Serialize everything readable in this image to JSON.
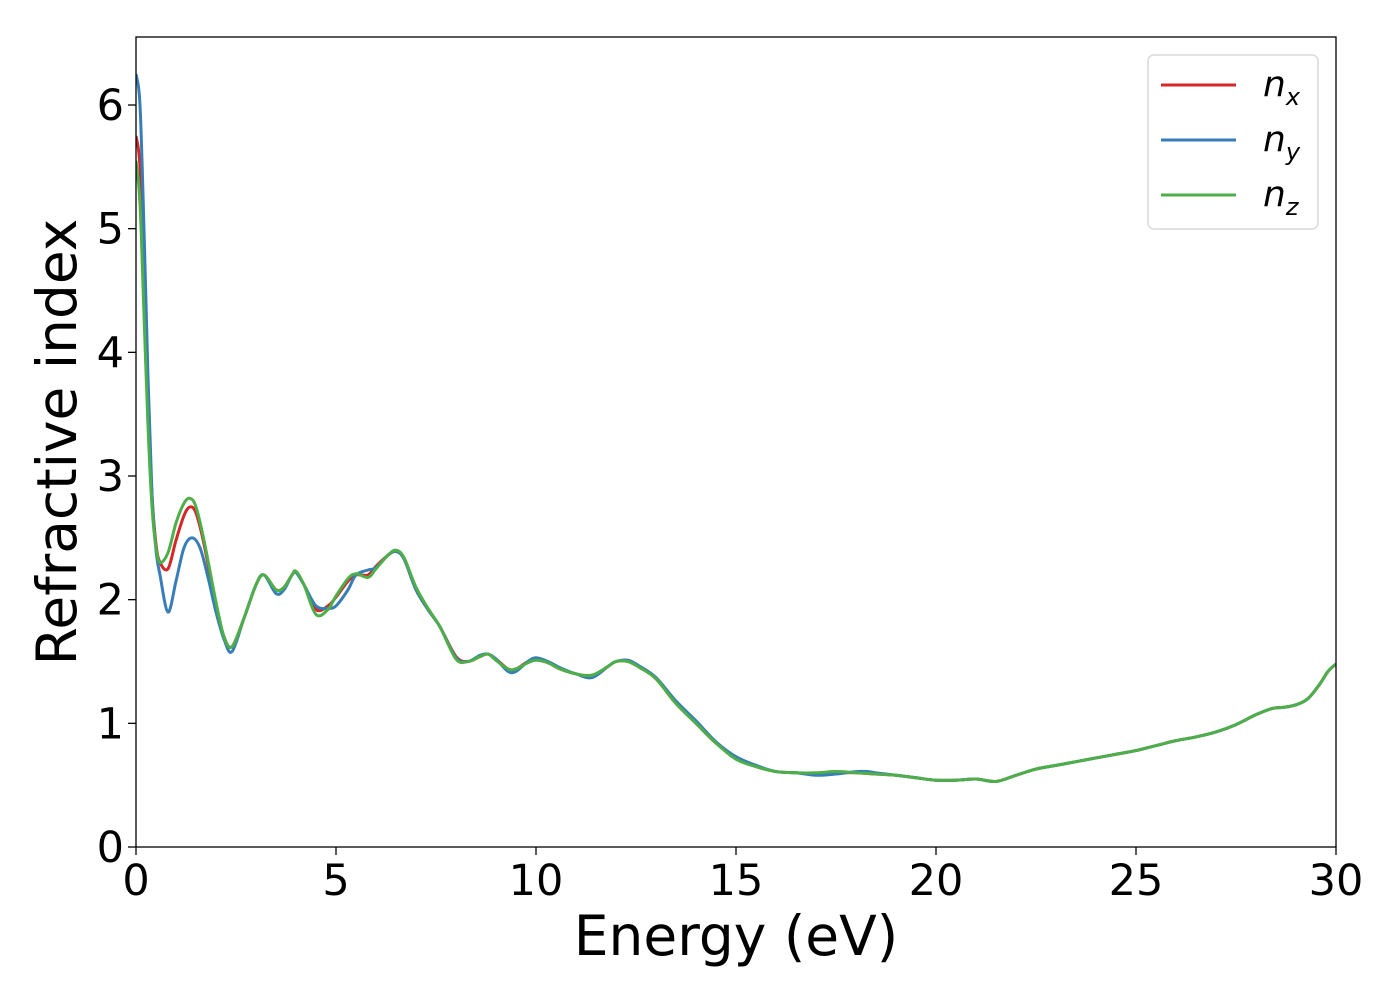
{
  "chart_data": {
    "type": "line",
    "xlabel": "Energy (eV)",
    "ylabel": "Refractive index",
    "xlim": [
      0,
      30
    ],
    "ylim": [
      0,
      6.55
    ],
    "xticks": [
      "0",
      "5",
      "10",
      "15",
      "20",
      "25",
      "30"
    ],
    "yticks": [
      "0",
      "1",
      "2",
      "3",
      "4",
      "5",
      "6"
    ],
    "grid": false,
    "legend_position": "top-right",
    "series": [
      {
        "name": "n_x",
        "label_main": "n",
        "label_sub": "x",
        "color": "#d62728",
        "x": [
          0,
          0.1,
          0.2,
          0.3,
          0.4,
          0.5,
          0.6,
          0.8,
          1.0,
          1.2,
          1.35,
          1.5,
          1.7,
          2.0,
          2.2,
          2.4,
          2.7,
          3.0,
          3.2,
          3.5,
          3.7,
          3.9,
          4.0,
          4.2,
          4.5,
          4.8,
          5.0,
          5.3,
          5.5,
          5.8,
          6.0,
          6.3,
          6.5,
          6.7,
          7.0,
          7.3,
          7.6,
          8.0,
          8.3,
          8.6,
          8.8,
          9.0,
          9.3,
          9.5,
          9.8,
          10.0,
          10.3,
          10.6,
          11.0,
          11.4,
          11.8,
          12.0,
          12.3,
          12.6,
          13.0,
          13.5,
          14.0,
          14.5,
          15.0,
          15.5,
          16.0,
          16.5,
          17.0,
          17.5,
          18.0,
          18.5,
          19.0,
          19.5,
          20.0,
          20.5,
          21.0,
          21.5,
          22.0,
          22.5,
          23.0,
          23.5,
          24.0,
          24.5,
          25.0,
          25.5,
          26.0,
          26.5,
          27.0,
          27.5,
          28.0,
          28.4,
          28.7,
          29.0,
          29.3,
          29.6,
          29.8,
          30.0
        ],
        "y": [
          5.75,
          5.5,
          4.6,
          3.6,
          2.85,
          2.45,
          2.3,
          2.25,
          2.48,
          2.68,
          2.75,
          2.7,
          2.45,
          1.95,
          1.7,
          1.62,
          1.85,
          2.12,
          2.2,
          2.08,
          2.1,
          2.2,
          2.22,
          2.12,
          1.92,
          1.95,
          2.02,
          2.15,
          2.2,
          2.2,
          2.27,
          2.36,
          2.39,
          2.33,
          2.08,
          1.92,
          1.78,
          1.54,
          1.5,
          1.54,
          1.56,
          1.52,
          1.44,
          1.44,
          1.5,
          1.52,
          1.49,
          1.44,
          1.4,
          1.38,
          1.46,
          1.5,
          1.5,
          1.45,
          1.36,
          1.16,
          1.0,
          0.84,
          0.72,
          0.65,
          0.61,
          0.6,
          0.59,
          0.6,
          0.6,
          0.59,
          0.58,
          0.56,
          0.54,
          0.54,
          0.55,
          0.53,
          0.58,
          0.63,
          0.66,
          0.69,
          0.72,
          0.75,
          0.78,
          0.82,
          0.86,
          0.89,
          0.93,
          0.99,
          1.07,
          1.12,
          1.13,
          1.15,
          1.2,
          1.32,
          1.42,
          1.48
        ]
      },
      {
        "name": "n_y",
        "label_main": "n",
        "label_sub": "y",
        "color": "#377eb8",
        "x": [
          0,
          0.1,
          0.2,
          0.3,
          0.4,
          0.5,
          0.6,
          0.8,
          1.0,
          1.2,
          1.4,
          1.6,
          1.8,
          2.0,
          2.2,
          2.4,
          2.7,
          3.0,
          3.2,
          3.5,
          3.7,
          3.9,
          4.0,
          4.2,
          4.5,
          4.8,
          5.0,
          5.3,
          5.5,
          5.8,
          6.0,
          6.3,
          6.5,
          6.7,
          7.0,
          7.3,
          7.6,
          8.0,
          8.3,
          8.6,
          8.8,
          9.0,
          9.3,
          9.5,
          9.8,
          10.0,
          10.3,
          10.6,
          11.0,
          11.4,
          11.8,
          12.0,
          12.3,
          12.6,
          13.0,
          13.5,
          14.0,
          14.5,
          15.0,
          15.5,
          16.0,
          16.5,
          17.0,
          17.5,
          18.0,
          18.3,
          18.5,
          19.0,
          19.5,
          20.0,
          20.5,
          21.0,
          21.5,
          22.0,
          22.5,
          23.0,
          23.5,
          24.0,
          24.5,
          25.0,
          25.5,
          26.0,
          26.5,
          27.0,
          27.5,
          28.0,
          28.4,
          28.7,
          29.0,
          29.3,
          29.6,
          29.8,
          30.0
        ],
        "y": [
          6.25,
          6.0,
          5.0,
          3.8,
          2.85,
          2.4,
          2.2,
          1.9,
          2.15,
          2.42,
          2.5,
          2.42,
          2.18,
          1.9,
          1.68,
          1.58,
          1.85,
          2.12,
          2.2,
          2.05,
          2.08,
          2.2,
          2.22,
          2.12,
          1.95,
          1.93,
          1.95,
          2.08,
          2.2,
          2.24,
          2.26,
          2.36,
          2.39,
          2.33,
          2.08,
          1.92,
          1.78,
          1.53,
          1.5,
          1.55,
          1.56,
          1.52,
          1.42,
          1.42,
          1.5,
          1.53,
          1.5,
          1.45,
          1.4,
          1.37,
          1.46,
          1.5,
          1.51,
          1.46,
          1.37,
          1.18,
          1.02,
          0.85,
          0.73,
          0.66,
          0.61,
          0.6,
          0.58,
          0.59,
          0.61,
          0.61,
          0.6,
          0.58,
          0.56,
          0.54,
          0.54,
          0.55,
          0.53,
          0.58,
          0.63,
          0.66,
          0.69,
          0.72,
          0.75,
          0.78,
          0.82,
          0.86,
          0.89,
          0.93,
          0.99,
          1.07,
          1.12,
          1.13,
          1.15,
          1.2,
          1.32,
          1.42,
          1.48
        ]
      },
      {
        "name": "n_z",
        "label_main": "n",
        "label_sub": "z",
        "color": "#4daf4a",
        "x": [
          0,
          0.1,
          0.2,
          0.3,
          0.4,
          0.5,
          0.6,
          0.8,
          1.0,
          1.2,
          1.35,
          1.5,
          1.7,
          2.0,
          2.2,
          2.4,
          2.7,
          3.0,
          3.2,
          3.5,
          3.7,
          3.9,
          4.0,
          4.2,
          4.5,
          4.8,
          5.0,
          5.3,
          5.5,
          5.8,
          6.0,
          6.3,
          6.5,
          6.7,
          7.0,
          7.3,
          7.6,
          8.0,
          8.3,
          8.6,
          8.8,
          9.0,
          9.3,
          9.5,
          9.8,
          10.0,
          10.3,
          10.6,
          11.0,
          11.4,
          11.8,
          12.0,
          12.3,
          12.6,
          13.0,
          13.5,
          14.0,
          14.5,
          15.0,
          15.5,
          16.0,
          16.5,
          17.0,
          17.5,
          18.0,
          18.5,
          19.0,
          19.5,
          20.0,
          20.5,
          21.0,
          21.5,
          22.0,
          22.5,
          23.0,
          23.5,
          24.0,
          24.5,
          25.0,
          25.5,
          26.0,
          26.5,
          27.0,
          27.5,
          28.0,
          28.4,
          28.7,
          29.0,
          29.3,
          29.6,
          29.8,
          30.0
        ],
        "y": [
          5.55,
          5.2,
          4.3,
          3.4,
          2.75,
          2.42,
          2.3,
          2.38,
          2.62,
          2.78,
          2.82,
          2.75,
          2.48,
          1.98,
          1.7,
          1.62,
          1.85,
          2.12,
          2.2,
          2.08,
          2.1,
          2.2,
          2.23,
          2.12,
          1.88,
          1.92,
          2.03,
          2.17,
          2.21,
          2.18,
          2.25,
          2.36,
          2.4,
          2.34,
          2.1,
          1.93,
          1.78,
          1.52,
          1.5,
          1.54,
          1.56,
          1.51,
          1.44,
          1.44,
          1.49,
          1.51,
          1.49,
          1.44,
          1.4,
          1.39,
          1.46,
          1.5,
          1.5,
          1.45,
          1.36,
          1.16,
          1.0,
          0.84,
          0.71,
          0.65,
          0.61,
          0.6,
          0.6,
          0.61,
          0.6,
          0.59,
          0.58,
          0.56,
          0.54,
          0.54,
          0.55,
          0.53,
          0.58,
          0.63,
          0.66,
          0.69,
          0.72,
          0.75,
          0.78,
          0.82,
          0.86,
          0.89,
          0.93,
          0.99,
          1.07,
          1.12,
          1.13,
          1.15,
          1.2,
          1.32,
          1.42,
          1.48
        ]
      }
    ]
  }
}
